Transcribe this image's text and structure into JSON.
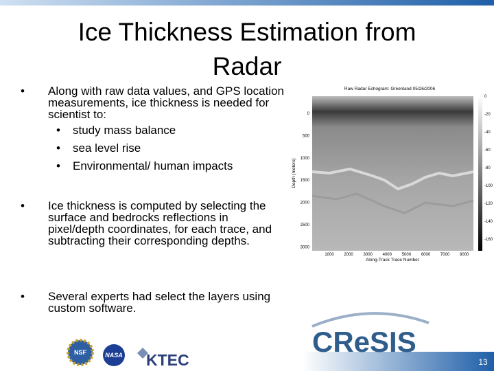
{
  "header": {
    "title": "Ice Thickness Estimation from Radar"
  },
  "bullets": [
    {
      "text": "Along with raw data values, and GPS location measurements, ice thickness is needed for scientist to:",
      "subitems": [
        "study mass balance",
        "sea level rise",
        "Environmental/ human impacts"
      ]
    },
    {
      "text": "Ice thickness is computed by selecting the surface and bedrocks reflections in pixel/depth coordinates, for each trace, and subtracting their corresponding depths."
    },
    {
      "text": "Several experts had select the layers using custom software."
    }
  ],
  "figure": {
    "title": "Raw Radar Echogram: Greenland 05/26/2006",
    "y_label": "Depth (meters)",
    "x_label": "Along-Track Trace Number",
    "y_ticks": [
      "0",
      "500",
      "1000",
      "1500",
      "2000",
      "2500",
      "3000"
    ],
    "x_ticks": [
      "1000",
      "2000",
      "3000",
      "4000",
      "5000",
      "6000",
      "7000",
      "8000"
    ],
    "colorbar_ticks": [
      "0",
      "-20",
      "-40",
      "-60",
      "-80",
      "-100",
      "-120",
      "-140",
      "-160"
    ]
  },
  "logos": {
    "nsf": "NSF",
    "nasa": "NASA",
    "ktec": "KTEC",
    "cresis": "CReSIS"
  },
  "page_number": "13"
}
